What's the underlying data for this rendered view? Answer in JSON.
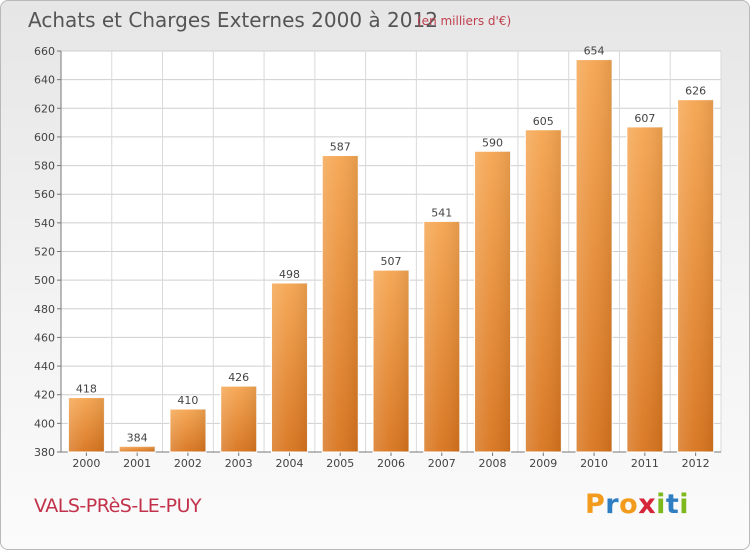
{
  "header": {
    "title": "Achats et Charges Externes 2000 à 2012",
    "unit": "(en milliers d'€)"
  },
  "location": "VALS-PRèS-LE-PUY",
  "logo": {
    "text": "Proxiti",
    "letters": [
      "P",
      "r",
      "o",
      "x",
      "i",
      "t",
      "i"
    ],
    "colors": [
      "#f29b1d",
      "#2f7ec1",
      "#f29b1d",
      "#d6253b",
      "#7cb81e",
      "#2f7ec1",
      "#7cb81e"
    ]
  },
  "chart_data": {
    "type": "bar",
    "title": "Achats et Charges Externes 2000 à 2012",
    "subtitle": "(en milliers d'€)",
    "categories": [
      "2000",
      "2001",
      "2002",
      "2003",
      "2004",
      "2005",
      "2006",
      "2007",
      "2008",
      "2009",
      "2010",
      "2011",
      "2012"
    ],
    "values": [
      418,
      384,
      410,
      426,
      498,
      587,
      507,
      541,
      590,
      605,
      654,
      607,
      626
    ],
    "ylim": [
      380,
      660
    ],
    "yticks": [
      380,
      400,
      420,
      440,
      460,
      480,
      500,
      520,
      540,
      560,
      580,
      600,
      620,
      640,
      660
    ],
    "grid": true,
    "data_labels": true,
    "bar_color_top": "#f5a550",
    "bar_color_bottom": "#d8741d"
  }
}
